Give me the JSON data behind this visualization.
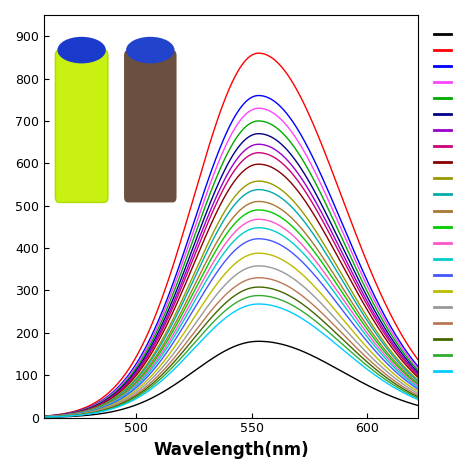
{
  "x_min": 460,
  "x_max": 622,
  "y_min": 0,
  "y_max": 950,
  "peak_wavelength": 553,
  "xlabel": "Wavelength(nm)",
  "x_ticks": [
    500,
    550,
    600
  ],
  "y_ticks": [
    0,
    100,
    200,
    300,
    400,
    500,
    600,
    700,
    800,
    900
  ],
  "curves": [
    {
      "color": "#000000",
      "peak": 180
    },
    {
      "color": "#ff0000",
      "peak": 860
    },
    {
      "color": "#0000ff",
      "peak": 760
    },
    {
      "color": "#ff44ff",
      "peak": 730
    },
    {
      "color": "#00aa00",
      "peak": 700
    },
    {
      "color": "#000088",
      "peak": 670
    },
    {
      "color": "#9900cc",
      "peak": 645
    },
    {
      "color": "#cc0077",
      "peak": 625
    },
    {
      "color": "#880000",
      "peak": 598
    },
    {
      "color": "#999900",
      "peak": 558
    },
    {
      "color": "#00aaaa",
      "peak": 538
    },
    {
      "color": "#aa7733",
      "peak": 510
    },
    {
      "color": "#00cc00",
      "peak": 490
    },
    {
      "color": "#ff55cc",
      "peak": 468
    },
    {
      "color": "#00cccc",
      "peak": 448
    },
    {
      "color": "#4455ff",
      "peak": 422
    },
    {
      "color": "#bbbb00",
      "peak": 388
    },
    {
      "color": "#999999",
      "peak": 358
    },
    {
      "color": "#bb7755",
      "peak": 330
    },
    {
      "color": "#446600",
      "peak": 308
    },
    {
      "color": "#33aa33",
      "peak": 288
    },
    {
      "color": "#00ccff",
      "peak": 268
    }
  ],
  "background_color": "#ffffff"
}
